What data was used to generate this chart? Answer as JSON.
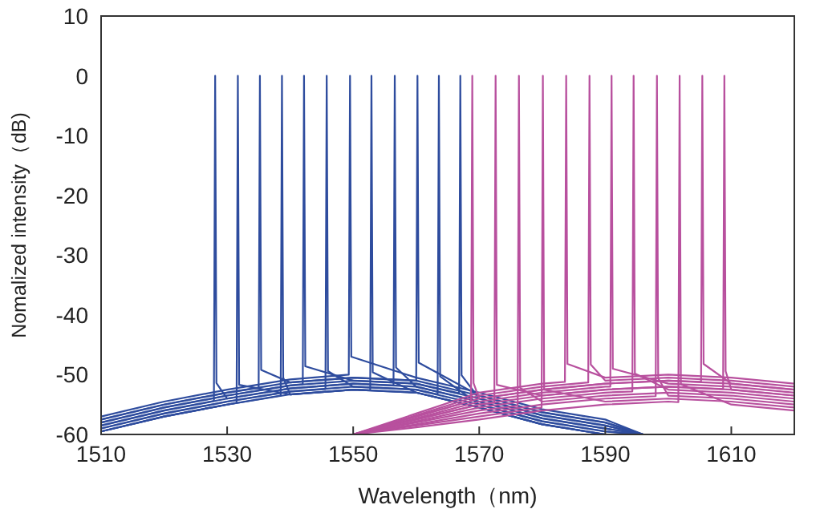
{
  "chart_data": {
    "type": "line",
    "xlabel": "Wavelength（nm)",
    "ylabel": "Nomalized intensity（dB)",
    "xlim": [
      1510,
      1620
    ],
    "xticks": [
      1510,
      1530,
      1550,
      1570,
      1590,
      1610
    ],
    "ylim": [
      -60,
      10
    ],
    "yticks": [
      -60,
      -50,
      -40,
      -30,
      -20,
      -10,
      0,
      10
    ],
    "grid": false,
    "line_style": "solid",
    "series": [
      {
        "color": "#2e4c9e",
        "x": [
          1510,
          1520,
          1527.9,
          1528.1,
          1528.3,
          1530,
          1540,
          1550,
          1560,
          1570,
          1580,
          1590,
          1596
        ],
        "values": [
          -58.5,
          -56,
          -54.4,
          0,
          -51.4,
          -54,
          -52.3,
          -51.5,
          -52,
          -54.5,
          -57.3,
          -59,
          -60
        ]
      },
      {
        "color": "#2e4c9e",
        "x": [
          1510,
          1520,
          1530,
          1531.5,
          1531.7,
          1531.9,
          1540,
          1550,
          1560,
          1570,
          1580,
          1590,
          1596
        ],
        "values": [
          -59.5,
          -57,
          -55,
          -54.7,
          0,
          -51.7,
          -53.3,
          -52.5,
          -53,
          -55.5,
          -58.3,
          -60,
          -60
        ]
      },
      {
        "color": "#2e4c9e",
        "x": [
          1510,
          1520,
          1530,
          1535,
          1535.2,
          1535.4,
          1540,
          1550,
          1560,
          1570,
          1580,
          1590,
          1596
        ],
        "values": [
          -57.5,
          -55,
          -53,
          -52.2,
          0,
          -49.2,
          -51.3,
          -50.5,
          -51,
          -53.5,
          -56.3,
          -58,
          -60
        ]
      },
      {
        "color": "#2e4c9e",
        "x": [
          1510,
          1520,
          1530,
          1538.5,
          1538.7,
          1538.9,
          1540,
          1550,
          1560,
          1570,
          1580,
          1590,
          1596
        ],
        "values": [
          -59.5,
          -57,
          -55,
          -53.5,
          0,
          -50.5,
          -53.3,
          -52.5,
          -53,
          -55.5,
          -58.3,
          -60,
          -60
        ]
      },
      {
        "color": "#2e4c9e",
        "x": [
          1510,
          1520,
          1530,
          1540,
          1542,
          1542.2,
          1542.4,
          1550,
          1560,
          1570,
          1580,
          1590,
          1596
        ],
        "values": [
          -58,
          -55.5,
          -53.5,
          -51.8,
          -51.6,
          0,
          -48.6,
          -51,
          -51.5,
          -54,
          -56.8,
          -58.5,
          -60
        ]
      },
      {
        "color": "#2e4c9e",
        "x": [
          1510,
          1520,
          1530,
          1540,
          1545.6,
          1545.8,
          1546,
          1550,
          1560,
          1570,
          1580,
          1590,
          1596
        ],
        "values": [
          -59,
          -56.5,
          -54.5,
          -52.8,
          -52.4,
          0,
          -49.4,
          -52,
          -52.5,
          -55,
          -57.8,
          -59.5,
          -60
        ]
      },
      {
        "color": "#2e4c9e",
        "x": [
          1510,
          1520,
          1530,
          1540,
          1549.3,
          1549.5,
          1549.7,
          1560,
          1570,
          1580,
          1590,
          1596
        ],
        "values": [
          -57,
          -54.5,
          -52.5,
          -50.8,
          -50,
          0,
          -47,
          -50.5,
          -53,
          -55.8,
          -57.5,
          -60
        ]
      },
      {
        "color": "#2e4c9e",
        "x": [
          1510,
          1520,
          1530,
          1540,
          1550,
          1552.7,
          1552.9,
          1553.1,
          1560,
          1570,
          1580,
          1590,
          1596
        ],
        "values": [
          -59.5,
          -57,
          -55,
          -53.3,
          -52.5,
          -52.6,
          0,
          -49.6,
          -53,
          -55.5,
          -58.3,
          -60,
          -60
        ]
      },
      {
        "color": "#2e4c9e",
        "x": [
          1510,
          1520,
          1530,
          1540,
          1550,
          1556.4,
          1556.6,
          1556.8,
          1560,
          1570,
          1580,
          1590,
          1596
        ],
        "values": [
          -58.5,
          -56,
          -54,
          -52.3,
          -51.5,
          -51.8,
          0,
          -48.8,
          -52,
          -54.5,
          -57.3,
          -59,
          -60
        ]
      },
      {
        "color": "#2e4c9e",
        "x": [
          1510,
          1520,
          1530,
          1540,
          1550,
          1560,
          1560.2,
          1560.4,
          1570,
          1580,
          1590,
          1596
        ],
        "values": [
          -57.5,
          -55,
          -53,
          -51.3,
          -50.5,
          -51,
          0,
          -48,
          -53.5,
          -56.3,
          -58,
          -60
        ]
      },
      {
        "color": "#2e4c9e",
        "x": [
          1510,
          1520,
          1530,
          1540,
          1550,
          1560,
          1563.4,
          1563.6,
          1563.8,
          1570,
          1580,
          1590,
          1596
        ],
        "values": [
          -59,
          -56.5,
          -54.5,
          -52.8,
          -52,
          -52.5,
          -53.3,
          0,
          -50.3,
          -55,
          -57.8,
          -59.5,
          -60
        ]
      },
      {
        "color": "#2e4c9e",
        "x": [
          1510,
          1520,
          1530,
          1540,
          1550,
          1560,
          1566.8,
          1567,
          1567.2,
          1570,
          1580,
          1590,
          1596
        ],
        "values": [
          -58,
          -55.5,
          -53.5,
          -51.8,
          -51,
          -51.5,
          -53.1,
          0,
          -50.1,
          -54,
          -56.8,
          -58.5,
          -60
        ]
      },
      {
        "color": "#b8509e",
        "x": [
          1550,
          1560,
          1568.7,
          1568.9,
          1569.1,
          1570,
          1580,
          1590,
          1600,
          1610,
          1620
        ],
        "values": [
          -60,
          -57,
          -54.4,
          0,
          -51.4,
          -54,
          -52.5,
          -51.5,
          -51,
          -51.5,
          -52.5
        ]
      },
      {
        "color": "#b8509e",
        "x": [
          1550,
          1560,
          1570,
          1572.4,
          1572.6,
          1572.8,
          1580,
          1590,
          1600,
          1610,
          1620
        ],
        "values": [
          -60,
          -57.5,
          -55,
          -54.7,
          0,
          -51.7,
          -53.5,
          -52.5,
          -52,
          -52.5,
          -53.5
        ]
      },
      {
        "color": "#b8509e",
        "x": [
          1550,
          1560,
          1570,
          1576.1,
          1576.3,
          1576.5,
          1580,
          1590,
          1600,
          1610,
          1620
        ],
        "values": [
          -60,
          -58,
          -56,
          -55.2,
          0,
          -52.2,
          -54.5,
          -53.5,
          -53,
          -53.5,
          -54.5
        ]
      },
      {
        "color": "#b8509e",
        "x": [
          1550,
          1560,
          1570,
          1579.9,
          1580.1,
          1580.3,
          1590,
          1600,
          1610,
          1620
        ],
        "values": [
          -60,
          -58.5,
          -57,
          -55.5,
          0,
          -52.5,
          -54.5,
          -54,
          -54.5,
          -55.5
        ]
      },
      {
        "color": "#b8509e",
        "x": [
          1550,
          1560,
          1570,
          1580,
          1583.6,
          1583.8,
          1584,
          1590,
          1600,
          1610,
          1620
        ],
        "values": [
          -60,
          -56.5,
          -53,
          -51.5,
          -51.2,
          0,
          -48.2,
          -50.5,
          -50,
          -50.5,
          -51.5
        ]
      },
      {
        "color": "#b8509e",
        "x": [
          1550,
          1560,
          1570,
          1580,
          1587.3,
          1587.5,
          1587.7,
          1590,
          1600,
          1610,
          1620
        ],
        "values": [
          -60,
          -56.8,
          -53.5,
          -52,
          -51.3,
          0,
          -48.3,
          -51,
          -50.5,
          -51,
          -52
        ]
      },
      {
        "color": "#b8509e",
        "x": [
          1550,
          1560,
          1570,
          1580,
          1590,
          1590.8,
          1591,
          1591.2,
          1600,
          1610,
          1620
        ],
        "values": [
          -60,
          -57.3,
          -54.5,
          -53,
          -52,
          -52,
          0,
          -49,
          -51.5,
          -52,
          -53
        ]
      },
      {
        "color": "#b8509e",
        "x": [
          1550,
          1560,
          1570,
          1580,
          1590,
          1594.3,
          1594.5,
          1594.7,
          1600,
          1610,
          1620
        ],
        "values": [
          -60,
          -57.8,
          -55.5,
          -54,
          -53,
          -52.8,
          0,
          -49.8,
          -52.5,
          -53,
          -54
        ]
      },
      {
        "color": "#b8509e",
        "x": [
          1550,
          1560,
          1570,
          1580,
          1590,
          1598,
          1598.2,
          1598.4,
          1600,
          1610,
          1620
        ],
        "values": [
          -60,
          -58.3,
          -56.5,
          -55,
          -54,
          -53.6,
          0,
          -50.6,
          -53.5,
          -54,
          -55
        ]
      },
      {
        "color": "#b8509e",
        "x": [
          1550,
          1560,
          1570,
          1580,
          1590,
          1600,
          1601.6,
          1601.8,
          1602,
          1610,
          1620
        ],
        "values": [
          -60,
          -58.8,
          -57.5,
          -56,
          -55,
          -54.5,
          -54.6,
          0,
          -51.6,
          -55,
          -56
        ]
      },
      {
        "color": "#b8509e",
        "x": [
          1550,
          1560,
          1570,
          1580,
          1590,
          1600,
          1605.2,
          1605.4,
          1605.6,
          1610,
          1620
        ],
        "values": [
          -60,
          -57,
          -54,
          -52.5,
          -51.5,
          -51,
          -51.2,
          0,
          -48.2,
          -51.5,
          -52.5
        ]
      },
      {
        "color": "#b8509e",
        "x": [
          1550,
          1560,
          1570,
          1580,
          1590,
          1600,
          1608.7,
          1608.9,
          1609.1,
          1610,
          1620
        ],
        "values": [
          -60,
          -57.5,
          -55,
          -53.5,
          -52.5,
          -52,
          -52.4,
          0,
          -49.4,
          -52.5,
          -53.5
        ]
      }
    ]
  }
}
